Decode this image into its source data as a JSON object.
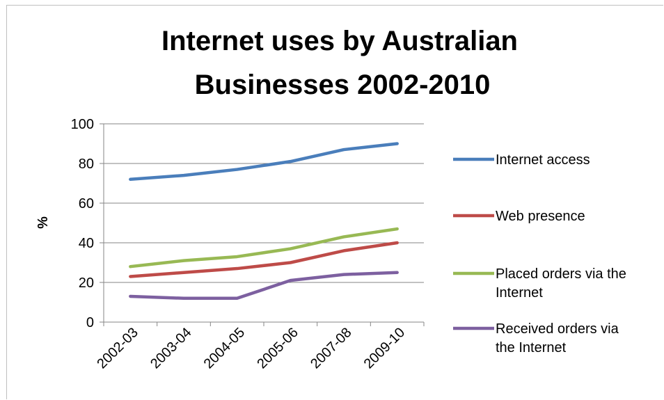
{
  "chart_data": {
    "type": "line",
    "title": "Internet uses by Australian Businesses 2002-2010",
    "title_lines": [
      "Internet uses by Australian",
      "Businesses 2002-2010"
    ],
    "ylabel": "%",
    "xlabel": "",
    "ylim": [
      0,
      100
    ],
    "yticks": [
      0,
      20,
      40,
      60,
      80,
      100
    ],
    "grid": true,
    "legend": "right",
    "categories": [
      "2002-03",
      "2003-04",
      "2004-05",
      "2005-06",
      "2007-08",
      "2009-10"
    ],
    "series": [
      {
        "name": "Internet access",
        "color": "#4a7ebb",
        "values": [
          72,
          74,
          77,
          81,
          87,
          90
        ],
        "legend_lines": [
          "Internet access"
        ]
      },
      {
        "name": "Web presence",
        "color": "#be4b48",
        "values": [
          23,
          25,
          27,
          30,
          36,
          40
        ],
        "legend_lines": [
          "Web presence"
        ]
      },
      {
        "name": "Placed orders via the Internet",
        "color": "#98b954",
        "values": [
          28,
          31,
          33,
          37,
          43,
          47
        ],
        "legend_lines": [
          "Placed orders via the",
          "Internet"
        ]
      },
      {
        "name": "Received orders via the Internet",
        "color": "#7d60a0",
        "values": [
          13,
          12,
          12,
          21,
          24,
          25
        ],
        "legend_lines": [
          "Received orders via",
          "the Internet"
        ]
      }
    ]
  }
}
